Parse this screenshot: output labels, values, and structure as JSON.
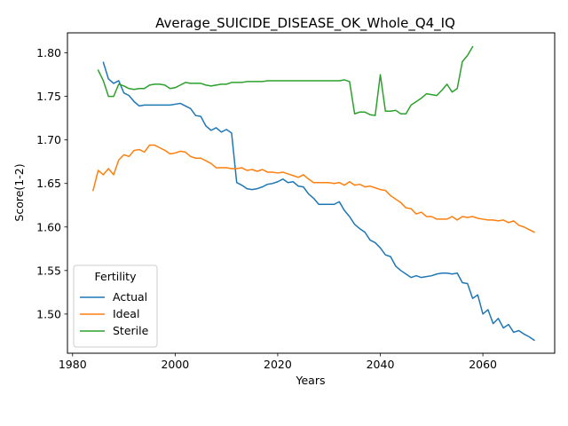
{
  "chart_data": {
    "type": "line",
    "title": "Average_SUICIDE_DISEASE_OK_Whole_Q4_IQ",
    "xlabel": "Years",
    "ylabel": "Score(1-2)",
    "xlim": [
      1979,
      2074
    ],
    "ylim": [
      1.455,
      1.823
    ],
    "xticks": [
      1980,
      2000,
      2020,
      2040,
      2060
    ],
    "yticks": [
      1.5,
      1.55,
      1.6,
      1.65,
      1.7,
      1.75,
      1.8
    ],
    "ytick_labels": [
      "1.50",
      "1.55",
      "1.60",
      "1.65",
      "1.70",
      "1.75",
      "1.80"
    ],
    "grid": false,
    "legend": {
      "title": "Fertility",
      "placement": "lower-left"
    },
    "series": [
      {
        "name": "Actual",
        "color": "#1f77b4",
        "x": [
          1986,
          1987,
          1988,
          1989,
          1990,
          1991,
          1992,
          1993,
          1994,
          1995,
          1996,
          1997,
          1998,
          1999,
          2000,
          2001,
          2002,
          2003,
          2004,
          2005,
          2006,
          2007,
          2008,
          2009,
          2010,
          2011,
          2012,
          2013,
          2014,
          2015,
          2016,
          2017,
          2018,
          2019,
          2020,
          2021,
          2022,
          2023,
          2024,
          2025,
          2026,
          2027,
          2028,
          2029,
          2030,
          2031,
          2032,
          2033,
          2034,
          2035,
          2036,
          2037,
          2038,
          2039,
          2040,
          2041,
          2042,
          2043,
          2044,
          2045,
          2046,
          2047,
          2048,
          2049,
          2050,
          2051,
          2052,
          2053,
          2054,
          2055,
          2056,
          2057,
          2058,
          2059,
          2060,
          2061,
          2062,
          2063,
          2064,
          2065,
          2066,
          2067,
          2068,
          2069,
          2070
        ],
        "values": [
          1.789,
          1.77,
          1.765,
          1.768,
          1.754,
          1.751,
          1.744,
          1.739,
          1.74,
          1.74,
          1.74,
          1.74,
          1.74,
          1.74,
          1.741,
          1.742,
          1.739,
          1.736,
          1.728,
          1.727,
          1.716,
          1.711,
          1.714,
          1.709,
          1.712,
          1.708,
          1.651,
          1.648,
          1.644,
          1.643,
          1.644,
          1.646,
          1.649,
          1.65,
          1.652,
          1.655,
          1.651,
          1.652,
          1.647,
          1.646,
          1.638,
          1.633,
          1.626,
          1.626,
          1.626,
          1.626,
          1.629,
          1.619,
          1.612,
          1.603,
          1.598,
          1.594,
          1.585,
          1.582,
          1.576,
          1.568,
          1.566,
          1.555,
          1.55,
          1.546,
          1.542,
          1.544,
          1.542,
          1.543,
          1.544,
          1.546,
          1.547,
          1.547,
          1.546,
          1.547,
          1.536,
          1.535,
          1.518,
          1.522,
          1.5,
          1.505,
          1.489,
          1.495,
          1.484,
          1.488,
          1.479,
          1.481,
          1.477,
          1.474,
          1.47
        ]
      },
      {
        "name": "Ideal",
        "color": "#ff7f0e",
        "x": [
          1984,
          1985,
          1986,
          1987,
          1988,
          1989,
          1990,
          1991,
          1992,
          1993,
          1994,
          1995,
          1996,
          1997,
          1998,
          1999,
          2000,
          2001,
          2002,
          2003,
          2004,
          2005,
          2006,
          2007,
          2008,
          2009,
          2010,
          2011,
          2012,
          2013,
          2014,
          2015,
          2016,
          2017,
          2018,
          2019,
          2020,
          2021,
          2022,
          2023,
          2024,
          2025,
          2026,
          2027,
          2028,
          2029,
          2030,
          2031,
          2032,
          2033,
          2034,
          2035,
          2036,
          2037,
          2038,
          2039,
          2040,
          2041,
          2042,
          2043,
          2044,
          2045,
          2046,
          2047,
          2048,
          2049,
          2050,
          2051,
          2052,
          2053,
          2054,
          2055,
          2056,
          2057,
          2058,
          2059,
          2060,
          2061,
          2062,
          2063,
          2064,
          2065,
          2066,
          2067,
          2068,
          2069,
          2070
        ],
        "values": [
          1.642,
          1.665,
          1.66,
          1.667,
          1.66,
          1.677,
          1.683,
          1.681,
          1.688,
          1.689,
          1.686,
          1.694,
          1.694,
          1.691,
          1.688,
          1.684,
          1.685,
          1.687,
          1.686,
          1.681,
          1.679,
          1.679,
          1.676,
          1.673,
          1.668,
          1.668,
          1.668,
          1.667,
          1.667,
          1.668,
          1.665,
          1.666,
          1.664,
          1.666,
          1.663,
          1.663,
          1.662,
          1.663,
          1.661,
          1.659,
          1.657,
          1.66,
          1.655,
          1.651,
          1.651,
          1.651,
          1.651,
          1.65,
          1.651,
          1.648,
          1.652,
          1.648,
          1.649,
          1.646,
          1.647,
          1.645,
          1.643,
          1.642,
          1.636,
          1.632,
          1.628,
          1.622,
          1.621,
          1.615,
          1.617,
          1.612,
          1.612,
          1.609,
          1.609,
          1.609,
          1.612,
          1.608,
          1.612,
          1.611,
          1.612,
          1.61,
          1.609,
          1.608,
          1.608,
          1.607,
          1.608,
          1.605,
          1.607,
          1.602,
          1.6,
          1.597,
          1.594
        ]
      },
      {
        "name": "Sterile",
        "color": "#2ca02c",
        "x": [
          1985,
          1986,
          1987,
          1988,
          1989,
          1990,
          1991,
          1992,
          1993,
          1994,
          1995,
          1996,
          1997,
          1998,
          1999,
          2000,
          2001,
          2002,
          2003,
          2004,
          2005,
          2006,
          2007,
          2008,
          2009,
          2010,
          2011,
          2012,
          2013,
          2014,
          2015,
          2016,
          2017,
          2018,
          2019,
          2020,
          2021,
          2022,
          2023,
          2024,
          2025,
          2026,
          2027,
          2028,
          2029,
          2030,
          2031,
          2032,
          2033,
          2034,
          2035,
          2036,
          2037,
          2038,
          2039,
          2040,
          2041,
          2042,
          2043,
          2044,
          2045,
          2046,
          2047,
          2048,
          2049,
          2050,
          2051,
          2052,
          2053,
          2054,
          2055,
          2056,
          2057,
          2058
        ],
        "values": [
          1.78,
          1.768,
          1.75,
          1.75,
          1.764,
          1.762,
          1.759,
          1.758,
          1.759,
          1.759,
          1.763,
          1.764,
          1.764,
          1.763,
          1.759,
          1.76,
          1.763,
          1.766,
          1.765,
          1.765,
          1.765,
          1.763,
          1.762,
          1.763,
          1.764,
          1.764,
          1.766,
          1.766,
          1.766,
          1.767,
          1.767,
          1.767,
          1.767,
          1.768,
          1.768,
          1.768,
          1.768,
          1.768,
          1.768,
          1.768,
          1.768,
          1.768,
          1.768,
          1.768,
          1.768,
          1.768,
          1.768,
          1.768,
          1.769,
          1.767,
          1.73,
          1.732,
          1.732,
          1.729,
          1.728,
          1.775,
          1.733,
          1.733,
          1.734,
          1.73,
          1.73,
          1.74,
          1.744,
          1.748,
          1.753,
          1.752,
          1.751,
          1.757,
          1.764,
          1.755,
          1.759,
          1.79,
          1.797,
          1.807
        ]
      }
    ]
  }
}
